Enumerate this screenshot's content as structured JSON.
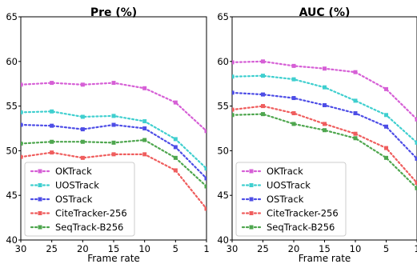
{
  "chart_data": [
    {
      "type": "line",
      "title": "Pre (%)",
      "xlabel": "Frame rate",
      "ylabel": "",
      "categories": [
        "30",
        "25",
        "20",
        "15",
        "10",
        "5",
        "1"
      ],
      "ylim": [
        40,
        65
      ],
      "yticks": [
        "40",
        "45",
        "50",
        "55",
        "60",
        "65"
      ],
      "legend_position": "lower-left",
      "grid": false,
      "series": [
        {
          "name": "OKTrack",
          "color": "#d65fd6",
          "values": [
            57.4,
            57.6,
            57.4,
            57.6,
            57.0,
            55.4,
            52.2
          ]
        },
        {
          "name": "UOSTrack",
          "color": "#3fcfcf",
          "values": [
            54.3,
            54.4,
            53.8,
            53.9,
            53.3,
            51.3,
            48.0
          ]
        },
        {
          "name": "OSTrack",
          "color": "#4d4de6",
          "values": [
            52.9,
            52.8,
            52.4,
            52.9,
            52.5,
            50.4,
            46.9
          ]
        },
        {
          "name": "CiteTracker-256",
          "color": "#ef5d5d",
          "values": [
            49.3,
            49.8,
            49.2,
            49.6,
            49.6,
            47.8,
            43.5
          ]
        },
        {
          "name": "SeqTrack-B256",
          "color": "#4ea64e",
          "values": [
            50.8,
            51.0,
            51.0,
            50.9,
            51.2,
            49.2,
            46.0
          ]
        }
      ]
    },
    {
      "type": "line",
      "title": "AUC (%)",
      "xlabel": "Frame rate",
      "ylabel": "",
      "categories": [
        "30",
        "25",
        "20",
        "15",
        "10",
        "5",
        "1"
      ],
      "ylim": [
        40,
        65
      ],
      "yticks": [
        "40",
        "45",
        "50",
        "55",
        "60",
        "65"
      ],
      "legend_position": "lower-left",
      "grid": false,
      "series": [
        {
          "name": "OKTrack",
          "color": "#d65fd6",
          "values": [
            59.9,
            60.0,
            59.5,
            59.2,
            58.8,
            56.9,
            53.5
          ]
        },
        {
          "name": "UOSTrack",
          "color": "#3fcfcf",
          "values": [
            58.3,
            58.4,
            58.0,
            57.1,
            55.6,
            54.0,
            50.9
          ]
        },
        {
          "name": "OSTrack",
          "color": "#4d4de6",
          "values": [
            56.5,
            56.3,
            55.9,
            55.1,
            54.2,
            52.7,
            49.1
          ]
        },
        {
          "name": "CiteTracker-256",
          "color": "#ef5d5d",
          "values": [
            54.6,
            55.0,
            54.2,
            53.0,
            51.9,
            50.3,
            46.4
          ]
        },
        {
          "name": "SeqTrack-B256",
          "color": "#4ea64e",
          "values": [
            54.0,
            54.1,
            53.0,
            52.3,
            51.4,
            49.2,
            45.8
          ]
        }
      ]
    }
  ]
}
